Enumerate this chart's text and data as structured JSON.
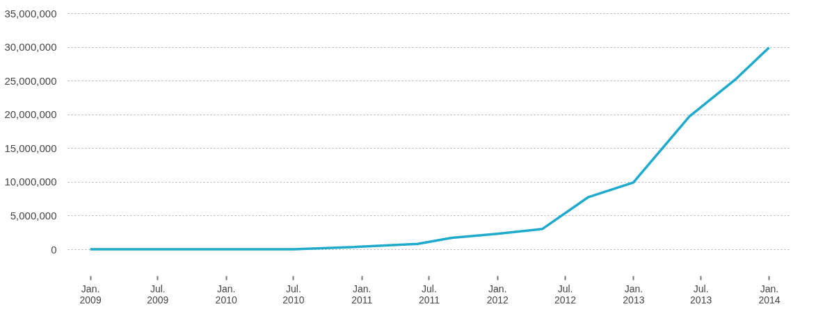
{
  "chart_data": {
    "type": "line",
    "x": [
      "2009-01",
      "2009-07",
      "2010-01",
      "2010-07",
      "2010-12",
      "2011-06",
      "2011-09",
      "2012-01",
      "2012-05",
      "2012-09",
      "2013-01",
      "2013-06",
      "2013-10",
      "2014-01"
    ],
    "series": [
      {
        "color": "#1eaacd",
        "values": [
          0,
          0,
          0,
          0,
          300000,
          800000,
          1700000,
          2300000,
          3000000,
          7700000,
          9900000,
          19700000,
          25100000,
          29900000
        ]
      }
    ],
    "xlim": [
      "2008-11",
      "2014-03"
    ],
    "xticks": [
      {
        "value": "2009-01",
        "label": "Jan.\n2009"
      },
      {
        "value": "2009-07",
        "label": "Jul.\n2009"
      },
      {
        "value": "2010-01",
        "label": "Jan.\n2010"
      },
      {
        "value": "2010-07",
        "label": "Jul.\n2010"
      },
      {
        "value": "2011-01",
        "label": "Jan.\n2011"
      },
      {
        "value": "2011-07",
        "label": "Jul.\n2011"
      },
      {
        "value": "2012-01",
        "label": "Jan.\n2012"
      },
      {
        "value": "2012-07",
        "label": "Jul.\n2012"
      },
      {
        "value": "2013-01",
        "label": "Jan.\n2013"
      },
      {
        "value": "2013-07",
        "label": "Jul.\n2013"
      },
      {
        "value": "2014-01",
        "label": "Jan.\n2014"
      }
    ],
    "ylim": [
      0,
      35000000
    ],
    "yticks": [
      0,
      {
        "value": 5000000,
        "label": "5,000,000"
      },
      {
        "value": 10000000,
        "label": "10,000,000"
      },
      {
        "value": 15000000,
        "label": "15,000,000"
      },
      {
        "value": 20000000,
        "label": "20,000,000"
      },
      {
        "value": 25000000,
        "label": "25,000,000"
      },
      {
        "value": 30000000,
        "label": "30,000,000"
      },
      {
        "value": 35000000,
        "label": "35,000,000"
      }
    ],
    "grid": "y",
    "line_style": "solid",
    "marker": "none"
  }
}
